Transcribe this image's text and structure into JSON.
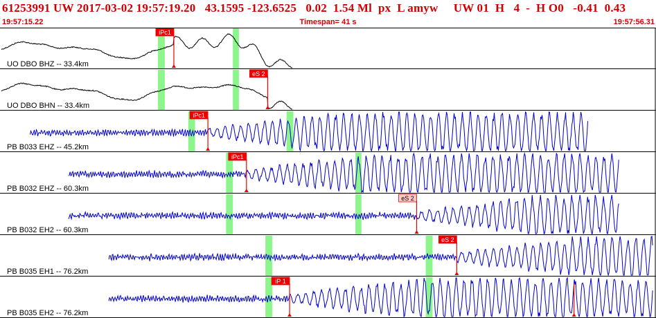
{
  "header": {
    "event_line": "61253991 UW 2017-03-02 19:57:19.20   43.1595 -123.6525   0.02  1.54 Ml  px  L amyw     UW 01  H   4  -  H O0   -0.41  0.43",
    "start_time": "19:57:15.22",
    "timespan": "Timespan=  41 s",
    "end_time": "19:57:56.31"
  },
  "colors": {
    "text_red": "#d00000",
    "pick_red": "#ee0000",
    "pick_label_bg": "#ffc8c8",
    "window_green": "#8cf58c",
    "trace_black": "#000000",
    "trace_blue": "#0000cc",
    "separator": "#000000"
  },
  "channels": [
    {
      "label": "UO DBO BHZ -- 33.4km",
      "color": "black",
      "start_s": 0.0,
      "end_s": 38.5,
      "green_windows_s": [
        [
          20.7,
          21.6
        ],
        [
          30.6,
          31.4
        ]
      ],
      "picks": [
        {
          "label": "iPc1",
          "t_s": 22.8,
          "label_filled": true
        }
      ]
    },
    {
      "label": "UO DBO BHN -- 33.4km",
      "color": "black",
      "start_s": 0.0,
      "end_s": 38.5,
      "green_windows_s": [
        [
          20.7,
          21.6
        ],
        [
          30.6,
          31.4
        ]
      ],
      "picks": [
        {
          "label": "eS 2",
          "t_s": 35.2,
          "label_filled": true
        }
      ]
    },
    {
      "label": "PB B033 EHZ -- 45.2km",
      "color": "blue",
      "start_s": 3.8,
      "end_s": 77.6,
      "green_windows_s": [
        [
          24.7,
          25.6
        ],
        [
          37.7,
          38.6
        ]
      ],
      "picks": [
        {
          "label": "iPc1",
          "t_s": 27.3,
          "label_filled": true
        }
      ]
    },
    {
      "label": "PB B032 EHZ -- 60.3km",
      "color": "blue",
      "start_s": 8.9,
      "end_s": 81.7,
      "green_windows_s": [
        [
          29.7,
          30.6
        ],
        [
          46.8,
          47.6
        ]
      ],
      "picks": [
        {
          "label": "iPc1",
          "t_s": 32.4,
          "label_filled": true
        }
      ]
    },
    {
      "label": "PB B032 EH2 -- 60.3km",
      "color": "blue",
      "start_s": 8.9,
      "end_s": 81.7,
      "green_windows_s": [
        [
          29.7,
          30.6
        ],
        [
          46.8,
          47.6
        ]
      ],
      "picks": [
        {
          "label": "eS 2",
          "t_s": 54.9,
          "label_filled": false
        }
      ]
    },
    {
      "label": "PB B035 EH1 -- 76.2km",
      "color": "blue",
      "start_s": 14.2,
      "end_s": 86.7,
      "green_windows_s": [
        [
          34.9,
          35.8
        ],
        [
          56.1,
          57.0
        ]
      ],
      "picks": [
        {
          "label": "eS 2",
          "t_s": 60.2,
          "label_filled": true
        }
      ]
    },
    {
      "label": "PB B035 EH2 -- 76.2km",
      "color": "blue",
      "start_s": 14.2,
      "end_s": 86.7,
      "green_windows_s": [
        [
          34.9,
          35.8
        ],
        [
          56.1,
          57.0
        ]
      ],
      "picks": [
        {
          "label": "iP 1",
          "t_s": 38.1,
          "label_filled": true
        },
        {
          "label": "",
          "t_s": 75.7,
          "label_filled": false
        }
      ]
    }
  ]
}
